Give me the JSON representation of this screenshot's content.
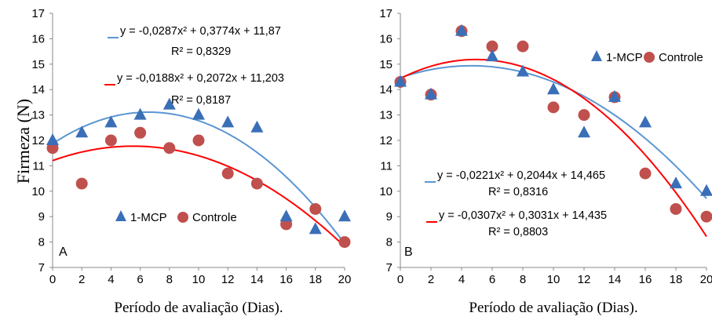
{
  "chart_data": [
    {
      "type": "scatter",
      "panel_label": "A",
      "xlabel": "Período de avaliação (Dias).",
      "ylabel": "Firmeza (N)",
      "xlim": [
        0,
        20
      ],
      "ylim": [
        7,
        17
      ],
      "x_ticks": [
        "0",
        "2",
        "4",
        "6",
        "8",
        "10",
        "12",
        "14",
        "16",
        "18",
        "20"
      ],
      "y_ticks": [
        "7",
        "8",
        "9",
        "10",
        "11",
        "12",
        "13",
        "14",
        "15",
        "16",
        "17"
      ],
      "grid": false,
      "legend_position": "bottom-center",
      "series": [
        {
          "name": "1-MCP",
          "marker": "triangle",
          "color": "#3a6fb8",
          "line_color": "#5b96d2",
          "x": [
            0,
            2,
            4,
            6,
            8,
            10,
            12,
            14,
            16,
            18,
            20
          ],
          "y": [
            12.0,
            12.3,
            12.7,
            13.0,
            13.4,
            13.0,
            12.7,
            12.5,
            9.0,
            8.5,
            9.0
          ],
          "trend": {
            "a": -0.0287,
            "b": 0.3774,
            "c": 11.87
          },
          "equation": "y = -0,0287x² + 0,3774x + 11,87",
          "r2": "R² = 0,8329"
        },
        {
          "name": "Controle",
          "marker": "circle",
          "color": "#c0504d",
          "line_color": "#ff0000",
          "x": [
            0,
            2,
            4,
            6,
            8,
            10,
            12,
            14,
            16,
            18,
            20
          ],
          "y": [
            11.7,
            10.3,
            12.0,
            12.3,
            11.7,
            12.0,
            10.7,
            10.3,
            8.7,
            9.3,
            8.0
          ],
          "trend": {
            "a": -0.0188,
            "b": 0.2072,
            "c": 11.203
          },
          "equation": "y = -0,0188x² + 0,2072x + 11,203",
          "r2": "R² = 0,8187"
        }
      ]
    },
    {
      "type": "scatter",
      "panel_label": "B",
      "xlabel": "Período de avaliação (Dias).",
      "ylabel": "",
      "xlim": [
        0,
        20
      ],
      "ylim": [
        7,
        17
      ],
      "x_ticks": [
        "0",
        "2",
        "4",
        "6",
        "8",
        "10",
        "12",
        "14",
        "16",
        "18",
        "20"
      ],
      "y_ticks": [
        "7",
        "8",
        "9",
        "10",
        "11",
        "12",
        "13",
        "14",
        "15",
        "16",
        "17"
      ],
      "grid": false,
      "legend_position": "top-right",
      "series": [
        {
          "name": "1-MCP",
          "marker": "triangle",
          "color": "#3a6fb8",
          "line_color": "#5b96d2",
          "x": [
            0,
            2,
            4,
            6,
            8,
            10,
            12,
            14,
            16,
            18,
            20
          ],
          "y": [
            14.3,
            13.8,
            16.3,
            15.3,
            14.7,
            14.0,
            12.3,
            13.7,
            12.7,
            10.3,
            10.0
          ],
          "trend": {
            "a": -0.0221,
            "b": 0.2044,
            "c": 14.465
          },
          "equation": "y = -0,0221x² + 0,2044x + 14,465",
          "r2": "R² = 0,8316"
        },
        {
          "name": "Controle",
          "marker": "circle",
          "color": "#c0504d",
          "line_color": "#ff0000",
          "x": [
            0,
            2,
            4,
            6,
            8,
            10,
            12,
            14,
            16,
            18,
            20
          ],
          "y": [
            14.3,
            13.8,
            16.3,
            15.7,
            15.7,
            13.3,
            13.0,
            13.7,
            10.7,
            9.3,
            9.0
          ],
          "trend": {
            "a": -0.0307,
            "b": 0.3031,
            "c": 14.435
          },
          "equation": "y = -0,0307x² + 0,3031x + 14,435",
          "r2": "R² = 0,8803"
        }
      ]
    }
  ]
}
